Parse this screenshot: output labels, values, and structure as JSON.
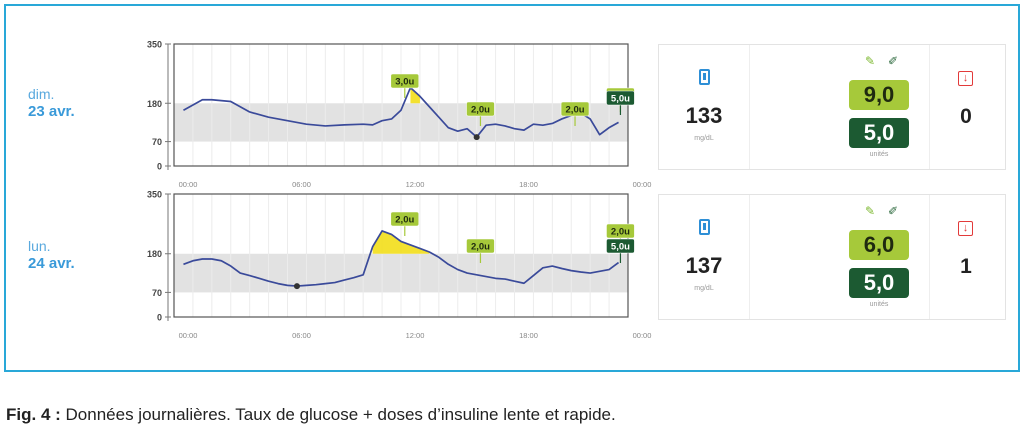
{
  "caption": {
    "label": "Fig. 4 :",
    "text": "Données journalières. Taux de glucose + doses d’insuline lente et rapide."
  },
  "colors": {
    "frame": "#29a8d8",
    "line": "#3a4a9a",
    "target_band": "#e2e2e2",
    "hyper_fill": "#f2de1a",
    "slow_dose": "#a6c93a",
    "fast_dose": "#1c5a32",
    "hypo_icon": "#e23a3a"
  },
  "icons": {
    "glucose": "phone-icon",
    "slow_insulin": "syringe-icon",
    "fast_insulin": "syringe-icon",
    "hypo": "arrow-down-box-icon"
  },
  "chart_data": [
    {
      "type": "line",
      "day_name": "dim.",
      "date": "23 avr.",
      "y_ticks": [
        "350",
        "180",
        "70",
        "0"
      ],
      "x_ticks": [
        "00:00",
        "06:00",
        "12:00",
        "18:00",
        "00:00"
      ],
      "xlim": [
        0,
        24
      ],
      "ylim": [
        0,
        350
      ],
      "target_range": [
        70,
        180
      ],
      "grid": true,
      "series": [
        {
          "x": [
            0.5,
            1,
            1.5,
            2,
            3,
            4,
            5,
            6,
            7,
            8,
            9,
            10,
            10.5,
            11,
            11.5,
            12,
            12.5,
            13,
            13.5,
            14,
            14.5,
            15,
            15.5,
            16,
            16.5,
            17,
            17.5,
            18,
            18.5,
            19,
            19.5,
            20,
            20.5,
            21,
            21.5,
            22,
            22.5,
            23,
            23.5
          ],
          "y": [
            160,
            175,
            190,
            190,
            185,
            155,
            140,
            130,
            120,
            115,
            118,
            120,
            118,
            130,
            135,
            160,
            225,
            200,
            170,
            140,
            110,
            100,
            107,
            83,
            117,
            120,
            115,
            107,
            103,
            120,
            117,
            122,
            135,
            145,
            152,
            135,
            90,
            110,
            125
          ]
        }
      ],
      "dose_labels": [
        {
          "time": 12.2,
          "label": "3,0u",
          "kind": "lente"
        },
        {
          "time": 16.2,
          "label": "2,0u",
          "kind": "lente"
        },
        {
          "time": 21.2,
          "label": "2,0u",
          "kind": "lente"
        },
        {
          "time": 24.8,
          "label": "2,0u",
          "kind": "lente"
        },
        {
          "time": 26.6,
          "label": "5,0u",
          "kind": "rapide"
        }
      ],
      "summary": {
        "glucose": "133",
        "glucose_unit": "mg/dL",
        "slow": "9,0",
        "fast": "5,0",
        "dose_unit": "unités",
        "hypo_count": "0"
      }
    },
    {
      "type": "line",
      "day_name": "lun.",
      "date": "24 avr.",
      "y_ticks": [
        "350",
        "180",
        "70",
        "0"
      ],
      "x_ticks": [
        "00:00",
        "06:00",
        "12:00",
        "18:00",
        "00:00"
      ],
      "xlim": [
        0,
        24
      ],
      "ylim": [
        0,
        350
      ],
      "target_range": [
        70,
        180
      ],
      "grid": true,
      "series": [
        {
          "x": [
            0.5,
            1,
            1.5,
            2,
            2.5,
            3,
            3.5,
            4,
            4.5,
            5,
            5.5,
            6,
            6.5,
            7,
            7.5,
            8,
            8.5,
            9,
            9.5,
            10,
            10.5,
            11,
            11.5,
            12,
            12.5,
            13,
            13.5,
            14,
            14.5,
            15,
            15.5,
            16,
            16.5,
            17,
            17.5,
            18,
            18.5,
            19,
            19.5,
            20,
            20.5,
            21,
            21.5,
            22,
            22.5,
            23,
            23.5
          ],
          "y": [
            150,
            160,
            165,
            165,
            160,
            145,
            125,
            118,
            110,
            102,
            95,
            90,
            88,
            90,
            92,
            95,
            98,
            105,
            112,
            120,
            200,
            245,
            235,
            215,
            205,
            195,
            185,
            170,
            150,
            135,
            125,
            120,
            115,
            110,
            108,
            102,
            96,
            118,
            140,
            145,
            138,
            132,
            128,
            125,
            130,
            135,
            155
          ]
        }
      ],
      "dose_labels": [
        {
          "time": 12.2,
          "label": "2,0u",
          "kind": "lente"
        },
        {
          "time": 16.2,
          "label": "2,0u",
          "kind": "lente"
        },
        {
          "time": 26.6,
          "label": "2,0u",
          "kind": "lente"
        },
        {
          "time": 26.6,
          "label": "5,0u",
          "kind": "rapide"
        }
      ],
      "summary": {
        "glucose": "137",
        "glucose_unit": "mg/dL",
        "slow": "6,0",
        "fast": "5,0",
        "dose_unit": "unités",
        "hypo_count": "1"
      }
    }
  ]
}
